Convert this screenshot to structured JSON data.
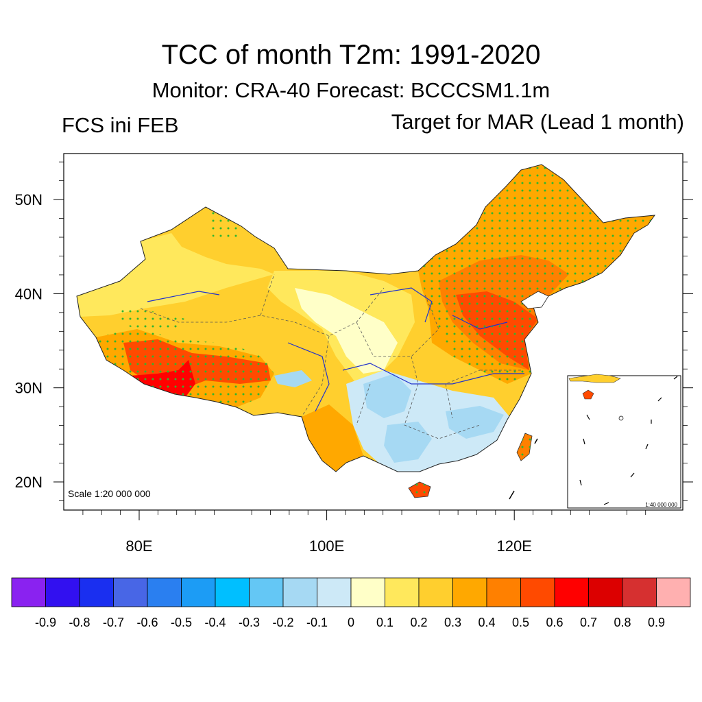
{
  "title": "TCC of month T2m: 1991-2020",
  "subtitle": "Monitor: CRA-40   Forecast: BCCCSM1.1m",
  "left_label": "FCS ini FEB",
  "right_label": "Target for MAR (Lead 1 month)",
  "scale_main": "Scale 1:20 000 000",
  "scale_inset": "1:40 000 000",
  "chart_data": {
    "type": "heatmap",
    "title": "TCC of month T2m: 1991-2020",
    "lat_ticks": [
      "50N",
      "40N",
      "30N",
      "20N"
    ],
    "lat_values": [
      50,
      40,
      30,
      20
    ],
    "lon_ticks": [
      "80E",
      "100E",
      "120E"
    ],
    "lon_values": [
      80,
      100,
      120
    ],
    "colorbar": {
      "colors": [
        "#8a22f0",
        "#3210f0",
        "#1a2ff0",
        "#4866e6",
        "#2a7ff0",
        "#1c9cf5",
        "#00bfff",
        "#64c7f5",
        "#a6d9f3",
        "#cde9f7",
        "#ffffc8",
        "#ffe85c",
        "#ffcf2e",
        "#ffa800",
        "#ff8000",
        "#ff4a00",
        "#ff0000",
        "#dc0000",
        "#d63030",
        "#ffb0b0"
      ],
      "labels": [
        "-0.9",
        "-0.8",
        "-0.7",
        "-0.6",
        "-0.5",
        "-0.4",
        "-0.3",
        "-0.2",
        "-0.1",
        "0",
        "0.1",
        "0.2",
        "0.3",
        "0.4",
        "0.5",
        "0.6",
        "0.7",
        "0.8",
        "0.9"
      ]
    },
    "stipple_color": "#2fb52f"
  }
}
